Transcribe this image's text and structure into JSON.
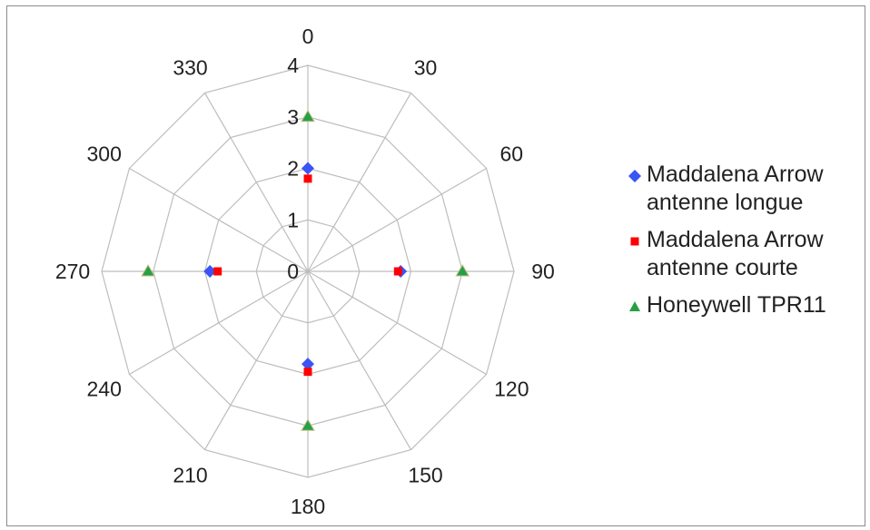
{
  "chart_data": {
    "type": "radar",
    "angles": [
      0,
      30,
      60,
      90,
      120,
      150,
      180,
      210,
      240,
      270,
      300,
      330
    ],
    "angle_labels": [
      "0",
      "30",
      "60",
      "90",
      "120",
      "150",
      "180",
      "210",
      "240",
      "270",
      "300",
      "330"
    ],
    "radial_ticks": [
      "0",
      "1",
      "2",
      "3",
      "4"
    ],
    "rlim": [
      0,
      4
    ],
    "grid": true,
    "legend_position": "right",
    "series": [
      {
        "name": "Maddalena Arrow antenne longue",
        "marker": "diamond",
        "color": "#3a54f5",
        "points": [
          {
            "angle": 0,
            "r": 2.0
          },
          {
            "angle": 90,
            "r": 1.8
          },
          {
            "angle": 180,
            "r": 1.8
          },
          {
            "angle": 270,
            "r": 1.9
          }
        ]
      },
      {
        "name": "Maddalena Arrow antenne courte",
        "marker": "square",
        "color": "#ff0000",
        "points": [
          {
            "angle": 0,
            "r": 1.8
          },
          {
            "angle": 90,
            "r": 1.75
          },
          {
            "angle": 180,
            "r": 1.95
          },
          {
            "angle": 270,
            "r": 1.75
          }
        ]
      },
      {
        "name": "Honeywell TPR11",
        "marker": "triangle",
        "color": "#26a045",
        "points": [
          {
            "angle": 0,
            "r": 3.0
          },
          {
            "angle": 90,
            "r": 3.0
          },
          {
            "angle": 180,
            "r": 3.0
          },
          {
            "angle": 270,
            "r": 3.1
          }
        ]
      }
    ]
  },
  "legend": {
    "items": [
      {
        "label": "Maddalena Arrow\nantenne longue",
        "marker": "diamond",
        "color": "#3a54f5"
      },
      {
        "label": "Maddalena Arrow\nantenne courte",
        "marker": "square",
        "color": "#ff0000"
      },
      {
        "label": "Honeywell TPR11",
        "marker": "triangle",
        "color": "#26a045"
      }
    ]
  }
}
